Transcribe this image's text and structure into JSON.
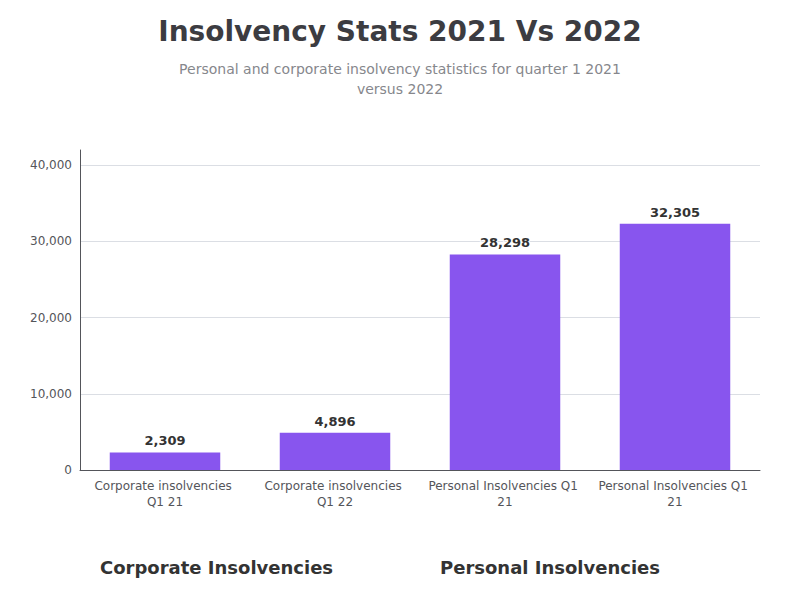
{
  "chart_data": {
    "type": "bar",
    "title": "Insolvency Stats 2021 Vs 2022",
    "subtitle": "Personal and corporate insolvency statistics for quarter 1 2021\nversus 2022",
    "categories": [
      "Corporate insolvencies Q1 21",
      "Corporate insolvencies Q1 22",
      "Personal Insolvencies Q1 21",
      "Personal Insolvencies Q1 21"
    ],
    "values": [
      2309,
      4896,
      28298,
      32305
    ],
    "value_labels": [
      "2,309",
      "4,896",
      "28,298",
      "32,305"
    ],
    "data_labels": true,
    "color": "#8855ee",
    "ylim": [
      0,
      42000
    ],
    "yticks": [
      0,
      {
        "value": 10000,
        "label": "10,000"
      },
      {
        "value": 20000,
        "label": "20,000"
      },
      {
        "value": 30000,
        "label": "30,000"
      },
      {
        "value": 40000,
        "label": "40,000"
      }
    ],
    "grid": true,
    "annotations": [
      "Corporate Insolvencies",
      "Personal Insolvencies"
    ]
  }
}
